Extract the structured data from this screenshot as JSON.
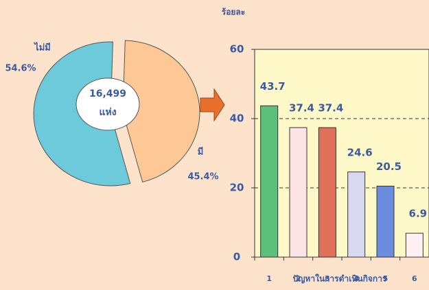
{
  "chart_data": [
    {
      "type": "pie",
      "categories": [
        "ไม่มี",
        "มี"
      ],
      "values": [
        54.6,
        45.4
      ],
      "value_labels": [
        "54.6%",
        "45.4%"
      ],
      "colors": [
        "#6ccadb",
        "#fdc896"
      ],
      "center_label": [
        "16,499",
        "แห่ง"
      ]
    },
    {
      "type": "bar",
      "ylabel": "ร้อยละ",
      "xlabel": "ปัญหาในการดำเนินกิจการ",
      "categories": [
        "1",
        "2",
        "3",
        "4",
        "5",
        "6"
      ],
      "values": [
        43.7,
        37.4,
        37.4,
        24.6,
        20.5,
        6.9
      ],
      "colors": [
        "#5cc07a",
        "#fde4e4",
        "#e0705a",
        "#d8d8f0",
        "#6c8ce0",
        "#fff0f4"
      ],
      "ylim": [
        0,
        60
      ],
      "yticks": [
        0,
        20,
        40,
        60
      ],
      "grid": true
    }
  ]
}
